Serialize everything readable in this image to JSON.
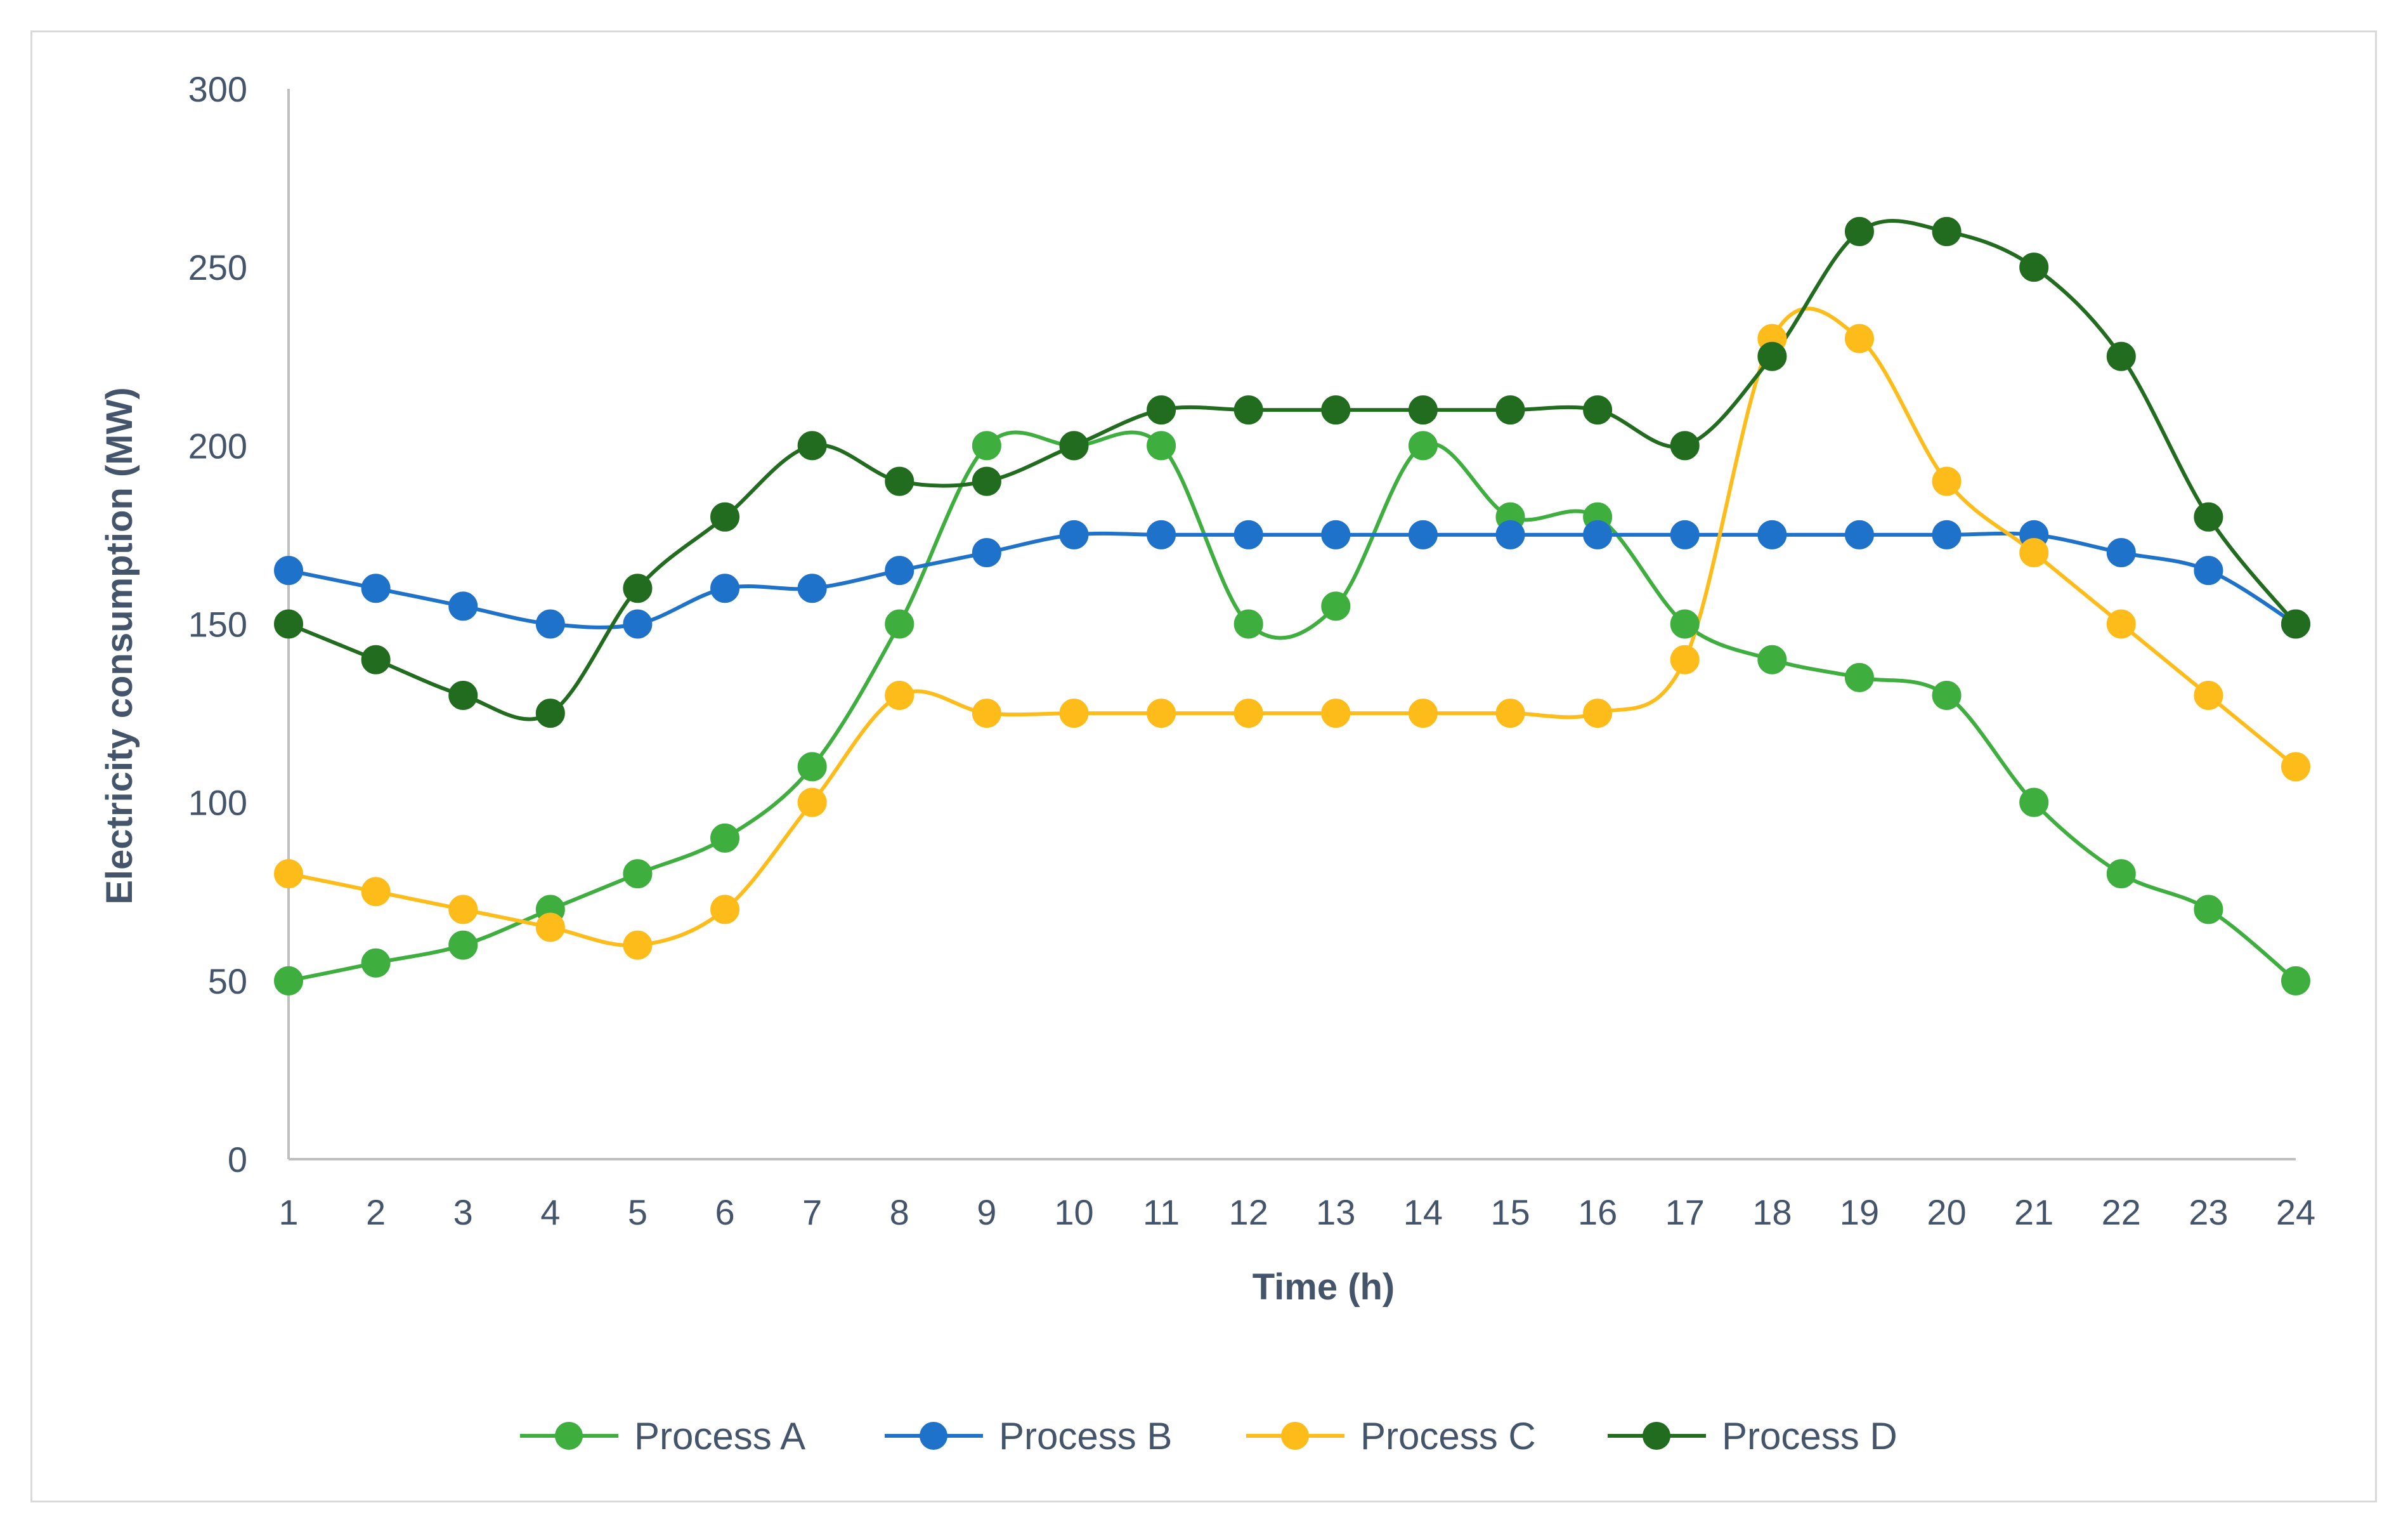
{
  "chart_data": {
    "type": "line",
    "title": "",
    "xlabel": "Time (h)",
    "ylabel": "Electricity consumption (MW)",
    "x": [
      1,
      2,
      3,
      4,
      5,
      6,
      7,
      8,
      9,
      10,
      11,
      12,
      13,
      14,
      15,
      16,
      17,
      18,
      19,
      20,
      21,
      22,
      23,
      24
    ],
    "ylim": [
      0,
      300
    ],
    "yticks": [
      0,
      50,
      100,
      150,
      200,
      250,
      300
    ],
    "grid": false,
    "smooth": true,
    "legend": "bottom",
    "series": [
      {
        "name": "Process A",
        "color": "#3eae3e",
        "values": [
          50,
          55,
          60,
          70,
          80,
          90,
          110,
          150,
          200,
          200,
          200,
          150,
          155,
          200,
          180,
          180,
          150,
          140,
          135,
          130,
          100,
          80,
          70,
          50
        ]
      },
      {
        "name": "Process B",
        "color": "#1f72c9",
        "values": [
          165,
          160,
          155,
          150,
          150,
          160,
          160,
          165,
          170,
          175,
          175,
          175,
          175,
          175,
          175,
          175,
          175,
          175,
          175,
          175,
          175,
          170,
          165,
          150
        ]
      },
      {
        "name": "Process C",
        "color": "#fdbc1a",
        "values": [
          80,
          75,
          70,
          65,
          60,
          70,
          100,
          130,
          125,
          125,
          125,
          125,
          125,
          125,
          125,
          125,
          140,
          230,
          230,
          190,
          170,
          150,
          130,
          110
        ]
      },
      {
        "name": "Process D",
        "color": "#226c1f",
        "values": [
          150,
          140,
          130,
          125,
          160,
          180,
          200,
          190,
          190,
          200,
          210,
          210,
          210,
          210,
          210,
          210,
          200,
          225,
          260,
          260,
          250,
          225,
          180,
          150
        ]
      }
    ]
  }
}
